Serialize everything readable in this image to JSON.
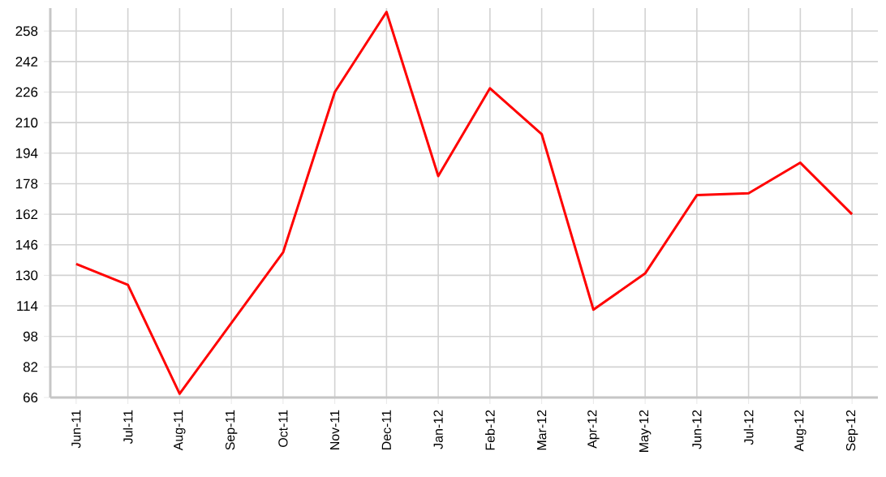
{
  "chart_data": {
    "type": "line",
    "categories": [
      "Jun-11",
      "Jul-11",
      "Aug-11",
      "Sep-11",
      "Oct-11",
      "Nov-11",
      "Dec-11",
      "Jan-12",
      "Feb-12",
      "Mar-12",
      "Apr-12",
      "May-12",
      "Jun-12",
      "Jul-12",
      "Aug-12",
      "Sep-12"
    ],
    "values": [
      136,
      125,
      68,
      105,
      142,
      226,
      268,
      182,
      228,
      204,
      112,
      131,
      172,
      173,
      189,
      162
    ],
    "color": "#ff0000",
    "ylim": [
      66,
      270
    ],
    "yticks": [
      66,
      82,
      98,
      114,
      130,
      146,
      162,
      178,
      194,
      210,
      226,
      242,
      258
    ],
    "grid": true,
    "marker": "none",
    "line_style": "solid"
  }
}
